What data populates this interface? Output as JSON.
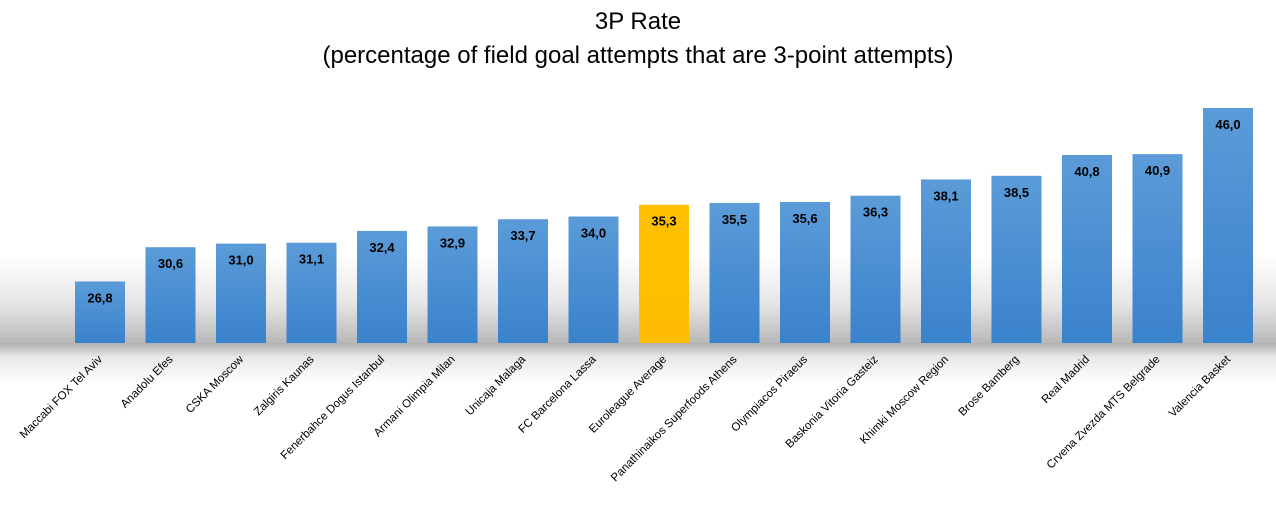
{
  "chart_data": {
    "type": "bar",
    "title": "3P Rate",
    "subtitle": "(percentage of field goal attempts that are 3-point attempts)",
    "xlabel": "",
    "ylabel": "",
    "ylim": [
      20,
      46
    ],
    "grid": false,
    "legend": "none",
    "colors": {
      "bar": "#4a90d6",
      "highlight": "#ffc000",
      "label": "#000000"
    },
    "highlight_category": "Euroleague Average",
    "categories": [
      "Maccabi FOX Tel Aviv",
      "Anadolu Efes",
      "CSKA Moscow",
      "Zalgiris Kaunas",
      "Fenerbahce Dogus Istanbul",
      "Armani Olimpia Milan",
      "Unicaja Malaga",
      "FC Barcelona Lassa",
      "Euroleague Average",
      "Panathinaikos Superfoods Athens",
      "Olympiacos Piraeus",
      "Baskonia Vitoria Gasteiz",
      "Khimki Moscow Region",
      "Brose Bamberg",
      "Real Madrid",
      "Crvena Zvezda MTS Belgrade",
      "Valencia Basket"
    ],
    "values": [
      26.8,
      30.6,
      31.0,
      31.1,
      32.4,
      32.9,
      33.7,
      34.0,
      35.3,
      35.5,
      35.6,
      36.3,
      38.1,
      38.5,
      40.8,
      40.9,
      46.0
    ],
    "value_labels": [
      "26,8",
      "30,6",
      "31,0",
      "31,1",
      "32,4",
      "32,9",
      "33,7",
      "34,0",
      "35,3",
      "35,5",
      "35,6",
      "36,3",
      "38,1",
      "38,5",
      "40,8",
      "40,9",
      "46,0"
    ]
  }
}
